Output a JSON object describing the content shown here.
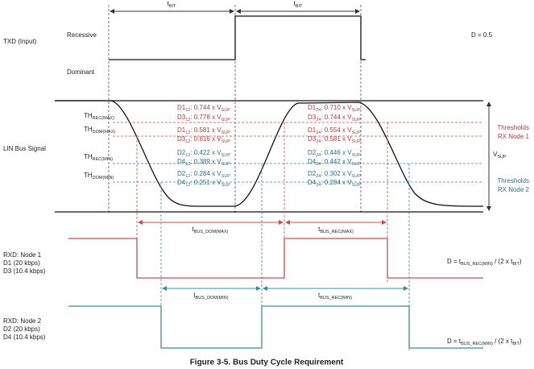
{
  "txd": {
    "label": "TXD (Input)",
    "recessive": "Recessive",
    "dominant": "Dominant",
    "duty": "D = 0.5",
    "t_bit_1": [
      "t",
      "BIT"
    ],
    "t_bit_2": [
      "t",
      "BIT"
    ]
  },
  "bus": {
    "label": "LIN Bus Signal",
    "thresholds": [
      [
        "TH",
        "REC(MAX)"
      ],
      [
        "TH",
        "DOM(MAX)"
      ],
      [
        "TH",
        "REC(MIN)"
      ],
      [
        "TH",
        "DOM(MIN)"
      ]
    ],
    "falling": [
      [
        "D1",
        "12",
        ": 0.744 x V",
        "SUP"
      ],
      [
        "D3",
        "12",
        ": 0.778 x V",
        "SUP"
      ],
      [
        "D1",
        "12",
        ": 0.581 x V",
        "SUP"
      ],
      [
        "D3",
        "12",
        ": 0.616 x V",
        "SUP"
      ],
      [
        "D2",
        "12",
        ": 0.422 x V",
        "SUP"
      ],
      [
        "D4",
        "12",
        ": 0.389 x V",
        "SUP"
      ],
      [
        "D2",
        "12",
        ": 0.284 x V",
        "SUP"
      ],
      [
        "D4",
        "12",
        ": 0.251 x V",
        "SUP"
      ]
    ],
    "rising": [
      [
        "D1",
        "24",
        ": 0.710 x V",
        "SUP"
      ],
      [
        "D3",
        "24",
        ": 0.744 x V",
        "SUP"
      ],
      [
        "D1",
        "24",
        ": 0.554 x V",
        "SUP"
      ],
      [
        "D3",
        "24",
        ": 0.581 x V",
        "SUP"
      ],
      [
        "D2",
        "24",
        ": 0.446 x V",
        "SUP"
      ],
      [
        "D4",
        "24",
        ": 0.442 x V",
        "SUP"
      ],
      [
        "D2",
        "24",
        ": 0.302 x V",
        "SUP"
      ],
      [
        "D4",
        "24",
        ": 0.284 x V",
        "SUP"
      ]
    ],
    "node1": [
      "Thresholds",
      "RX Node 1"
    ],
    "node2": [
      "Thresholds",
      "RX Node 2"
    ],
    "vsup": [
      "V",
      "SUP"
    ]
  },
  "rxd1": {
    "lines": [
      "RXD: Node 1",
      "D1 (20 kbps)",
      "D3 (10.4 kbps)"
    ],
    "t_dom": [
      "t",
      "BUS_DOM(MAX)"
    ],
    "t_rec": [
      "t",
      "BUS_REC(MAX)"
    ],
    "formula": [
      "D = t",
      "BUS_REC(MIN)",
      " / (2 x t",
      "BIT",
      ")"
    ]
  },
  "rxd2": {
    "lines": [
      "RXD: Node 2",
      "D2 (20 kbps)",
      "D4 (10.4 kbps)"
    ],
    "t_dom": [
      "t",
      "BUS_DOM(MIN)"
    ],
    "t_rec": [
      "t",
      "BUS_REC(MIN)"
    ],
    "formula": [
      "D = t",
      "BUS_REC(MIN)",
      " / (2 x t",
      "BIT",
      ")"
    ]
  },
  "caption": "Figure 3-5. Bus Duty Cycle Requirement"
}
